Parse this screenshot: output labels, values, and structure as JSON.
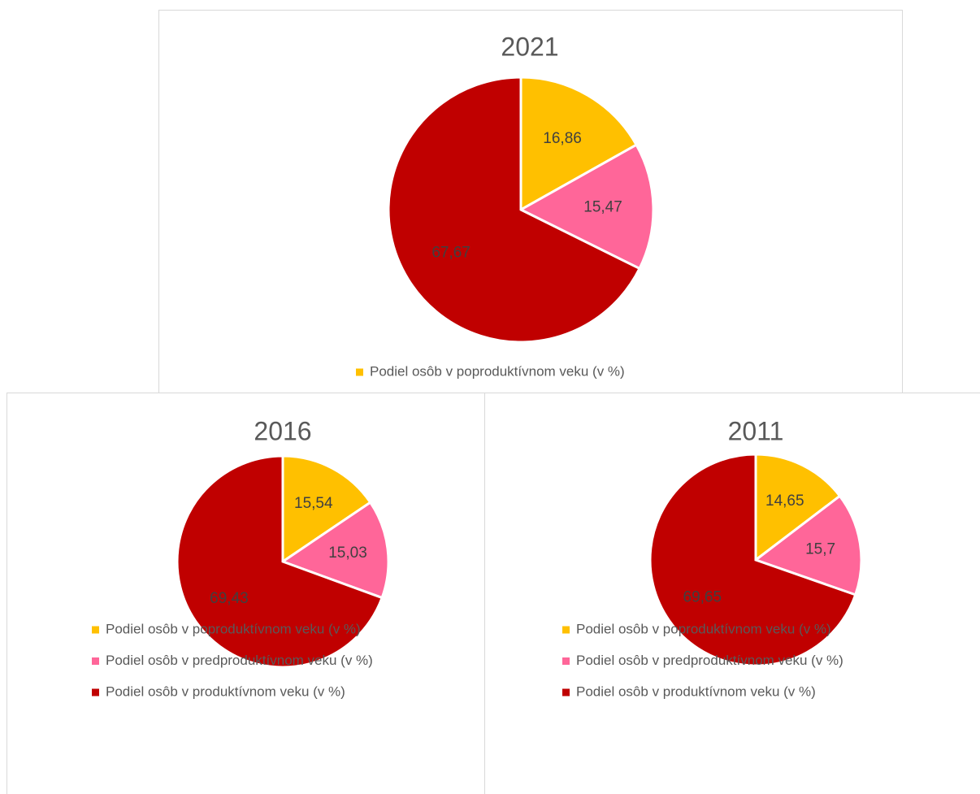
{
  "chart_data": [
    {
      "type": "pie",
      "title": "2021",
      "categories": [
        "Podiel osôb v poproduktívnom veku (v %)",
        null,
        null
      ],
      "values": [
        16.86,
        15.47,
        67.67
      ],
      "value_labels": [
        "16,86",
        "15,47",
        "67,67"
      ],
      "colors": [
        "#FFC000",
        "#FF6699",
        "#C00000"
      ]
    },
    {
      "type": "pie",
      "title": "2016",
      "categories": [
        "Podiel osôb v poproduktívnom veku (v %)",
        "Podiel osôb v predproduktívnom veku (v %)",
        "Podiel osôb v produktívnom veku (v %)"
      ],
      "values": [
        15.54,
        15.03,
        69.43
      ],
      "value_labels": [
        "15,54",
        "15,03",
        "69,43"
      ],
      "colors": [
        "#FFC000",
        "#FF6699",
        "#C00000"
      ]
    },
    {
      "type": "pie",
      "title": "2011",
      "categories": [
        "Podiel osôb v poproduktívnom veku (v %)",
        "Podiel osôb v predproduktívnom veku (v %)",
        "Podiel osôb v produktívnom veku (v %)"
      ],
      "values": [
        14.65,
        15.7,
        69.65
      ],
      "value_labels": [
        "14,65",
        "15,7",
        "69,65"
      ],
      "colors": [
        "#FFC000",
        "#FF6699",
        "#C00000"
      ]
    }
  ]
}
